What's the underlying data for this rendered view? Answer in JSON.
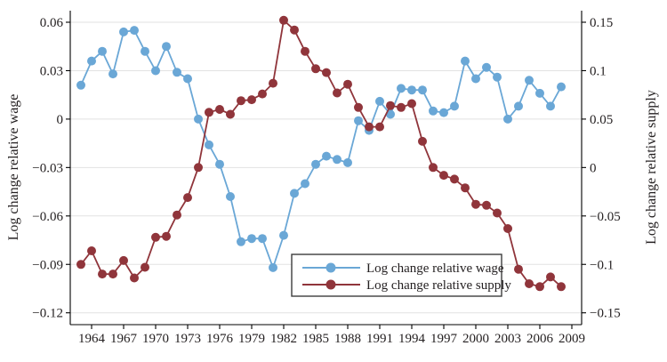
{
  "chart_data": {
    "type": "line",
    "title": "",
    "grid": "horizontal",
    "x": [
      1963,
      1964,
      1965,
      1966,
      1967,
      1968,
      1969,
      1970,
      1971,
      1972,
      1973,
      1974,
      1975,
      1976,
      1977,
      1978,
      1979,
      1980,
      1981,
      1982,
      1983,
      1984,
      1985,
      1986,
      1987,
      1988,
      1989,
      1990,
      1991,
      1992,
      1993,
      1994,
      1995,
      1996,
      1997,
      1998,
      1999,
      2000,
      2001,
      2002,
      2003,
      2004,
      2005,
      2006,
      2007,
      2008
    ],
    "x_ticks": [
      1964,
      1967,
      1970,
      1973,
      1976,
      1979,
      1982,
      1985,
      1988,
      1991,
      1994,
      1997,
      2000,
      2003,
      2006,
      2009
    ],
    "left_axis": {
      "label": "Log change relative wage",
      "tick_values": [
        0.06,
        0.03,
        0,
        -0.03,
        -0.06,
        -0.09,
        -0.12
      ],
      "tick_labels": [
        "0.06",
        "0.03",
        "0",
        "−0.03",
        "−0.06",
        "−0.09",
        "−0.12"
      ],
      "value_at_top_gridline": 0.06,
      "value_at_bottom_gridline": -0.12
    },
    "right_axis": {
      "label": "Log change relative supply",
      "tick_values": [
        0.15,
        0.1,
        0.05,
        0,
        -0.05,
        -0.1,
        -0.15
      ],
      "tick_labels": [
        "0.15",
        "0.1",
        "0.05",
        "0",
        "−0.05",
        "−0.1",
        "−0.15"
      ],
      "value_at_top_gridline": 0.15,
      "value_at_bottom_gridline": -0.15
    },
    "series": [
      {
        "name": "Log change relative wage",
        "axis": "left",
        "color": "#6aa7d6",
        "marker": "circle",
        "values": [
          0.021,
          0.036,
          0.042,
          0.028,
          0.054,
          0.055,
          0.042,
          0.03,
          0.045,
          0.029,
          0.025,
          0.0,
          -0.016,
          -0.028,
          -0.048,
          -0.076,
          -0.074,
          -0.074,
          -0.092,
          -0.072,
          -0.046,
          -0.04,
          -0.028,
          -0.023,
          -0.025,
          -0.027,
          -0.001,
          -0.007,
          0.011,
          0.003,
          0.019,
          0.018,
          0.018,
          0.005,
          0.004,
          0.008,
          0.036,
          0.025,
          0.032,
          0.026,
          0.0,
          0.008,
          0.024,
          0.016,
          0.008,
          0.02
        ]
      },
      {
        "name": "Log change relative supply",
        "axis": "right",
        "color": "#90353b",
        "marker": "circle",
        "values": [
          -0.1,
          -0.086,
          -0.11,
          -0.11,
          -0.096,
          -0.114,
          -0.103,
          -0.072,
          -0.071,
          -0.049,
          -0.031,
          0.0,
          0.057,
          0.06,
          0.055,
          0.069,
          0.07,
          0.076,
          0.087,
          0.152,
          0.142,
          0.12,
          0.102,
          0.098,
          0.077,
          0.086,
          0.062,
          0.042,
          0.042,
          0.064,
          0.062,
          0.066,
          0.027,
          0.0,
          -0.008,
          -0.012,
          -0.021,
          -0.038,
          -0.039,
          -0.047,
          -0.063,
          -0.105,
          -0.12,
          -0.123,
          -0.113,
          -0.123
        ]
      }
    ],
    "legend": {
      "position": "inside-bottom-right",
      "entries": [
        {
          "label": "Log change relative wage",
          "color": "#6aa7d6"
        },
        {
          "label": "Log change relative supply",
          "color": "#90353b"
        }
      ]
    }
  },
  "colors": {
    "background": "#ffffff",
    "grid": "#e2e2e2",
    "axis": "#000000",
    "text": "#231f20",
    "legend_border": "#3d3d3d",
    "wage": "#6aa7d6",
    "supply": "#90353b"
  }
}
